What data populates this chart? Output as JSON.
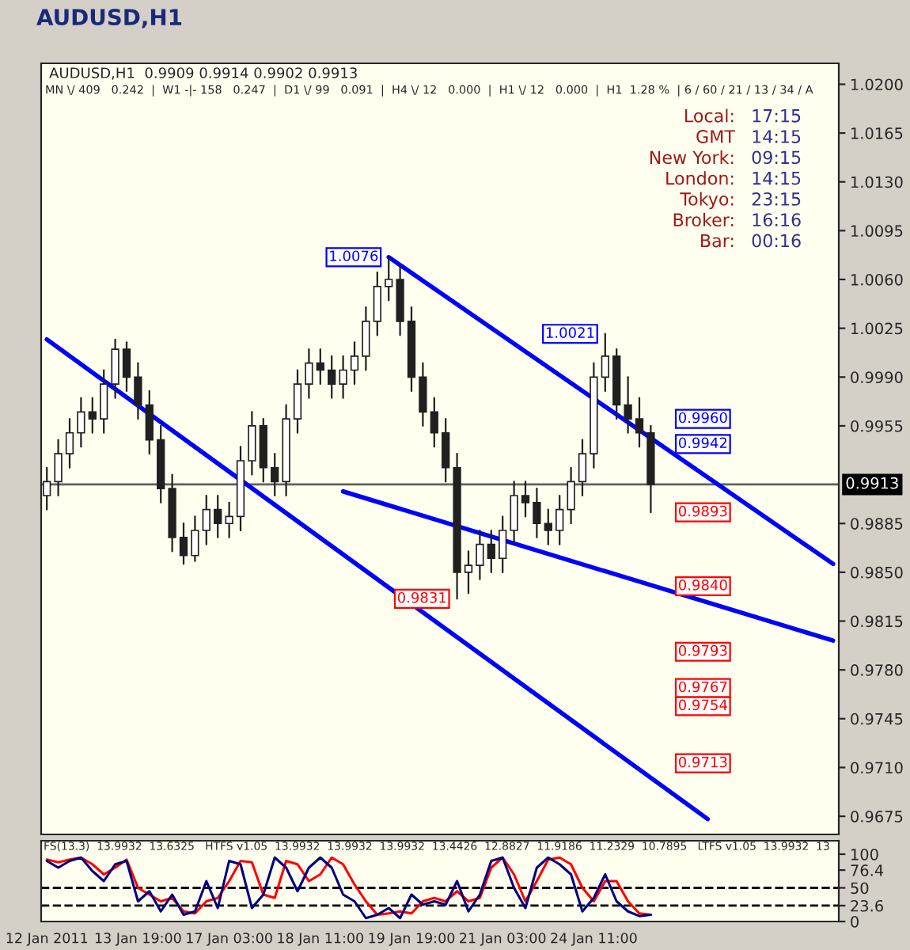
{
  "chart_data": [
    {
      "type": "candlestick",
      "title": "AUDUSD,H1",
      "subtitle": "AUDUSD,H1  0.9909 0.9914 0.9902 0.9913",
      "categories": [
        null,
        null,
        null,
        null,
        null,
        null,
        null,
        null,
        null,
        null,
        null,
        null,
        null,
        null,
        null,
        null,
        null,
        null,
        null,
        null,
        null,
        null,
        null,
        null,
        null,
        null,
        null,
        null,
        null,
        null,
        null,
        null,
        null,
        null,
        null,
        null,
        null,
        null,
        null,
        null,
        null,
        null,
        null,
        null,
        null,
        null,
        null,
        null,
        null,
        null,
        null,
        null,
        null,
        null,
        null,
        null,
        null,
        null,
        null,
        null,
        null,
        null,
        null,
        null,
        null,
        null,
        null,
        null,
        null,
        null
      ],
      "ohlc": [
        [
          0.9905,
          0.9925,
          0.9895,
          0.9915
        ],
        [
          0.9915,
          0.9945,
          0.9905,
          0.9935
        ],
        [
          0.9935,
          0.996,
          0.9925,
          0.995
        ],
        [
          0.995,
          0.9975,
          0.994,
          0.9965
        ],
        [
          0.9965,
          0.9975,
          0.995,
          0.996
        ],
        [
          0.996,
          0.9995,
          0.995,
          0.9985
        ],
        [
          0.9985,
          1.0017,
          0.9975,
          1.001
        ],
        [
          1.001,
          1.0015,
          0.998,
          0.999
        ],
        [
          0.999,
          1.0,
          0.996,
          0.997
        ],
        [
          0.997,
          0.998,
          0.9935,
          0.9945
        ],
        [
          0.9945,
          0.9955,
          0.99,
          0.991
        ],
        [
          0.991,
          0.992,
          0.9865,
          0.9875
        ],
        [
          0.9875,
          0.9885,
          0.9856,
          0.9862
        ],
        [
          0.9862,
          0.989,
          0.9858,
          0.988
        ],
        [
          0.988,
          0.9905,
          0.987,
          0.9895
        ],
        [
          0.9895,
          0.9905,
          0.9875,
          0.9885
        ],
        [
          0.9885,
          0.99,
          0.9875,
          0.989
        ],
        [
          0.989,
          0.994,
          0.988,
          0.993
        ],
        [
          0.993,
          0.9965,
          0.992,
          0.9955
        ],
        [
          0.9955,
          0.996,
          0.9915,
          0.9925
        ],
        [
          0.9925,
          0.9935,
          0.9905,
          0.9915
        ],
        [
          0.9915,
          0.997,
          0.9905,
          0.996
        ],
        [
          0.996,
          0.9995,
          0.995,
          0.9985
        ],
        [
          0.9985,
          1.001,
          0.9975,
          1.0
        ],
        [
          1.0,
          1.001,
          0.9985,
          0.9995
        ],
        [
          0.9995,
          1.0005,
          0.9975,
          0.9985
        ],
        [
          0.9985,
          1.0005,
          0.9975,
          0.9995
        ],
        [
          0.9995,
          1.0015,
          0.9985,
          1.0005
        ],
        [
          1.0005,
          1.004,
          0.9995,
          1.003
        ],
        [
          1.003,
          1.0065,
          1.002,
          1.0055
        ],
        [
          1.0055,
          1.0076,
          1.0045,
          1.006
        ],
        [
          1.006,
          1.007,
          1.002,
          1.003
        ],
        [
          1.003,
          1.004,
          0.998,
          0.999
        ],
        [
          0.999,
          1.0,
          0.9955,
          0.9965
        ],
        [
          0.9965,
          0.9975,
          0.994,
          0.995
        ],
        [
          0.995,
          0.996,
          0.9915,
          0.9925
        ],
        [
          0.9925,
          0.9935,
          0.9831,
          0.985
        ],
        [
          0.985,
          0.9865,
          0.9835,
          0.9855
        ],
        [
          0.9855,
          0.988,
          0.9845,
          0.987
        ],
        [
          0.987,
          0.988,
          0.985,
          0.986
        ],
        [
          0.986,
          0.989,
          0.985,
          0.988
        ],
        [
          0.988,
          0.9915,
          0.987,
          0.9905
        ],
        [
          0.9905,
          0.9915,
          0.989,
          0.99
        ],
        [
          0.99,
          0.991,
          0.9875,
          0.9885
        ],
        [
          0.9885,
          0.9895,
          0.987,
          0.988
        ],
        [
          0.988,
          0.9905,
          0.987,
          0.9895
        ],
        [
          0.9895,
          0.9925,
          0.9885,
          0.9915
        ],
        [
          0.9915,
          0.9945,
          0.9905,
          0.9935
        ],
        [
          0.9935,
          1.0,
          0.9925,
          0.999
        ],
        [
          0.999,
          1.0021,
          0.998,
          1.0005
        ],
        [
          1.0005,
          1.001,
          0.996,
          0.997
        ],
        [
          0.997,
          0.999,
          0.995,
          0.996
        ],
        [
          0.996,
          0.9975,
          0.994,
          0.995
        ],
        [
          0.995,
          0.9955,
          0.9893,
          0.9913
        ],
        null,
        null,
        null,
        null,
        null,
        null,
        null,
        null,
        null,
        null,
        null,
        null,
        null,
        null,
        null,
        null
      ],
      "series": [
        {
          "type": "line",
          "color": "#0000ff",
          "values": [
            1.0017,
            null,
            null,
            null,
            null,
            null,
            null,
            null,
            null,
            null,
            null,
            null,
            null,
            null,
            null,
            null,
            null,
            null,
            null,
            null,
            null,
            null,
            null,
            null,
            null,
            null,
            null,
            null,
            null,
            null,
            null,
            null,
            null,
            null,
            null,
            null,
            null,
            null,
            null,
            null,
            null,
            null,
            null,
            null,
            null,
            null,
            null,
            null,
            null,
            null,
            null,
            null,
            null,
            null,
            null,
            null,
            null,
            null,
            0.9673,
            null,
            null,
            null,
            null,
            null,
            null,
            null,
            null,
            null,
            null,
            null
          ]
        },
        {
          "type": "line",
          "color": "#0000ff",
          "values": [
            null,
            null,
            null,
            null,
            null,
            null,
            null,
            null,
            null,
            null,
            null,
            null,
            null,
            null,
            null,
            null,
            null,
            null,
            null,
            null,
            null,
            null,
            null,
            null,
            null,
            null,
            null,
            null,
            null,
            null,
            1.0076,
            null,
            null,
            null,
            null,
            null,
            null,
            null,
            null,
            null,
            null,
            null,
            null,
            null,
            null,
            null,
            null,
            null,
            null,
            null,
            null,
            null,
            null,
            null,
            null,
            null,
            null,
            null,
            null,
            null,
            null,
            null,
            null,
            null,
            null,
            null,
            null,
            null,
            null,
            0.9856
          ]
        },
        {
          "type": "line",
          "color": "#0000ff",
          "values": [
            null,
            null,
            null,
            null,
            null,
            null,
            null,
            null,
            null,
            null,
            null,
            null,
            null,
            null,
            null,
            null,
            null,
            null,
            null,
            null,
            null,
            null,
            null,
            null,
            null,
            null,
            0.9908,
            null,
            null,
            null,
            null,
            null,
            null,
            null,
            null,
            null,
            null,
            null,
            null,
            null,
            null,
            null,
            null,
            null,
            null,
            null,
            null,
            null,
            null,
            null,
            null,
            null,
            null,
            null,
            null,
            null,
            null,
            null,
            null,
            null,
            null,
            null,
            null,
            null,
            null,
            null,
            null,
            null,
            null,
            0.9801
          ]
        }
      ],
      "ylim": [
        0.9662,
        1.0215
      ],
      "yticks": [
        {
          "value": 1.02,
          "label": "1.0200"
        },
        {
          "value": 1.0165,
          "label": "1.0165"
        },
        {
          "value": 1.013,
          "label": "1.0130"
        },
        {
          "value": 1.0095,
          "label": "1.0095"
        },
        {
          "value": 1.006,
          "label": "1.0060"
        },
        {
          "value": 1.0025,
          "label": "1.0025"
        },
        {
          "value": 0.999,
          "label": "0.9990"
        },
        {
          "value": 0.9955,
          "label": "0.9955"
        },
        {
          "value": 0.9885,
          "label": "0.9885"
        },
        {
          "value": 0.985,
          "label": "0.9850"
        },
        {
          "value": 0.9815,
          "label": "0.9815"
        },
        {
          "value": 0.978,
          "label": "0.9780"
        },
        {
          "value": 0.9745,
          "label": "0.9745"
        },
        {
          "value": 0.971,
          "label": "0.9710"
        },
        {
          "value": 0.9675,
          "label": "0.9675"
        }
      ],
      "tick_labels": "y",
      "ref_lines": [
        {
          "axis": "y",
          "value": 0.9913,
          "label": "0.9913",
          "color": "#606060"
        }
      ],
      "annotations": [
        "MN \\/ 409   0.242  |  W1 -|- 158   0.247  |  D1 \\/ 99   0.091  |  H4 \\/ 12   0.000  |  H1 \\/ 12   0.000  |  H1  1.28 %  | 6 / 60 / 21 / 13 / 34 / A",
        "Local:",
        "17:15",
        "GMT",
        "14:15",
        "New York:",
        "09:15",
        "London:",
        "14:15",
        "Tokyo:",
        "23:15",
        "Broker:",
        "16:16",
        "Bar:",
        "00:16",
        "1.0076",
        "1.0021",
        "0.9831",
        "0.9960",
        "0.9942",
        "0.9893",
        "0.9840",
        "0.9793",
        "0.9767",
        "0.9754",
        "0.9713"
      ]
    },
    {
      "type": "line",
      "categories": [
        "12 Jan 2011",
        null,
        null,
        null,
        null,
        null,
        null,
        null,
        "13 Jan 19:00",
        null,
        null,
        null,
        null,
        null,
        null,
        null,
        "17 Jan 03:00",
        null,
        null,
        null,
        null,
        null,
        null,
        null,
        "18 Jan 11:00",
        null,
        null,
        null,
        null,
        null,
        null,
        null,
        "19 Jan 19:00",
        null,
        null,
        null,
        null,
        null,
        null,
        null,
        "21 Jan 03:00",
        null,
        null,
        null,
        null,
        null,
        null,
        null,
        "24 Jan 11:00",
        null,
        null,
        null,
        null,
        null,
        null,
        null,
        null,
        null,
        null,
        null,
        null,
        null,
        null,
        null,
        null,
        null,
        null,
        null,
        null,
        null
      ],
      "series": [
        {
          "color": "#ff0000",
          "values": [
            92,
            88,
            92,
            95,
            85,
            70,
            80,
            92,
            50,
            40,
            30,
            35,
            15,
            12,
            30,
            35,
            60,
            90,
            88,
            40,
            35,
            90,
            85,
            60,
            70,
            95,
            85,
            55,
            30,
            10,
            12,
            15,
            12,
            30,
            35,
            30,
            45,
            30,
            35,
            80,
            95,
            70,
            30,
            60,
            92,
            95,
            85,
            50,
            30,
            60,
            60,
            30,
            12,
            10,
            null,
            null,
            null,
            null,
            null,
            null,
            null,
            null,
            null,
            null,
            null,
            null,
            null,
            null,
            null,
            null
          ]
        },
        {
          "color": "#000080",
          "values": [
            90,
            80,
            90,
            95,
            75,
            60,
            85,
            90,
            30,
            45,
            15,
            40,
            10,
            15,
            60,
            20,
            90,
            85,
            20,
            40,
            95,
            80,
            45,
            80,
            95,
            80,
            40,
            30,
            5,
            10,
            20,
            5,
            40,
            25,
            30,
            25,
            60,
            15,
            40,
            90,
            95,
            50,
            20,
            80,
            95,
            85,
            70,
            15,
            35,
            70,
            30,
            15,
            8,
            10,
            null,
            null,
            null,
            null,
            null,
            null,
            null,
            null,
            null,
            null,
            null,
            null,
            null,
            null,
            null,
            null
          ]
        }
      ],
      "ylim": [
        0,
        120
      ],
      "yticks": [
        0,
        23.6,
        50,
        76.4,
        100
      ],
      "ref_lines": [
        {
          "axis": "y",
          "value": 50,
          "label": null,
          "color": "#000000",
          "line_style": "dashed"
        },
        {
          "axis": "y",
          "value": 23.6,
          "label": null,
          "color": "#000000",
          "line_style": "dashed"
        }
      ],
      "annotations": [
        "FS(13.3)  13.9932  13.6325   HTFS v1.05  13.9932  13.9932  13.9932  13.4426  12.8827  11.9186  11.2329  10.7895   LTFS v1.05  13.9932  13"
      ]
    }
  ]
}
